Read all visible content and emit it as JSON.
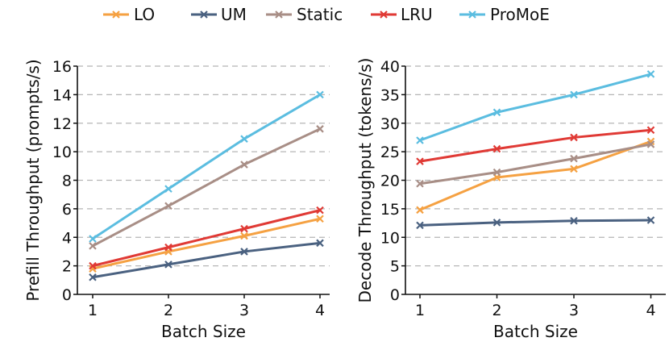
{
  "legend": [
    {
      "key": "LO",
      "label": "LO",
      "color": "#f5a142"
    },
    {
      "key": "UM",
      "label": "UM",
      "color": "#4a6180"
    },
    {
      "key": "Static",
      "label": "Static",
      "color": "#a88e86"
    },
    {
      "key": "LRU",
      "label": "LRU",
      "color": "#e03a35"
    },
    {
      "key": "ProMoE",
      "label": "ProMoE",
      "color": "#5bbde0"
    }
  ],
  "chart_data": [
    {
      "type": "line",
      "title": "",
      "xlabel": "Batch Size",
      "ylabel": "Prefill Throughput (prompts/s)",
      "x": [
        1,
        2,
        3,
        4
      ],
      "xticks": [
        "1",
        "2",
        "3",
        "4"
      ],
      "ylim": [
        0,
        16
      ],
      "yticks": [
        "0",
        "2",
        "4",
        "6",
        "8",
        "10",
        "12",
        "14",
        "16"
      ],
      "grid": "horizontal-dashed",
      "series": [
        {
          "name": "LO",
          "values": [
            1.8,
            3.0,
            4.1,
            5.3
          ]
        },
        {
          "name": "UM",
          "values": [
            1.2,
            2.1,
            3.0,
            3.6
          ]
        },
        {
          "name": "Static",
          "values": [
            3.4,
            6.2,
            9.1,
            11.6
          ]
        },
        {
          "name": "LRU",
          "values": [
            2.0,
            3.3,
            4.6,
            5.9
          ]
        },
        {
          "name": "ProMoE",
          "values": [
            3.9,
            7.4,
            10.9,
            14.0
          ]
        }
      ]
    },
    {
      "type": "line",
      "title": "",
      "xlabel": "Batch Size",
      "ylabel": "Decode Throughput (tokens/s)",
      "x": [
        1,
        2,
        3,
        4
      ],
      "xticks": [
        "1",
        "2",
        "3",
        "4"
      ],
      "ylim": [
        0,
        40
      ],
      "yticks": [
        "0",
        "5",
        "10",
        "15",
        "20",
        "25",
        "30",
        "35",
        "40"
      ],
      "grid": "horizontal-dashed",
      "series": [
        {
          "name": "LO",
          "values": [
            14.8,
            20.5,
            22.0,
            26.8
          ]
        },
        {
          "name": "UM",
          "values": [
            12.1,
            12.6,
            12.9,
            13.0
          ]
        },
        {
          "name": "Static",
          "values": [
            19.4,
            21.4,
            23.8,
            26.3
          ]
        },
        {
          "name": "LRU",
          "values": [
            23.3,
            25.5,
            27.5,
            28.8
          ]
        },
        {
          "name": "ProMoE",
          "values": [
            27.0,
            31.9,
            35.0,
            38.6
          ]
        }
      ]
    }
  ]
}
